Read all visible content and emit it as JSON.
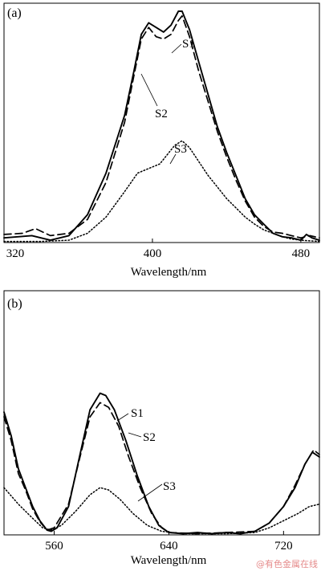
{
  "chart_data": [
    {
      "type": "line",
      "panel_label": "(a)",
      "xlabel": "Wavelength/nm",
      "ylabel": "",
      "xlim": [
        320,
        490
      ],
      "ylim": [
        0,
        1.0
      ],
      "xticks": [
        320,
        400,
        480
      ],
      "yticks_shown": false,
      "series": [
        {
          "name": "S1",
          "style": "solid",
          "points": [
            [
              320,
              0.02
            ],
            [
              335,
              0.03
            ],
            [
              345,
              0.01
            ],
            [
              355,
              0.03
            ],
            [
              365,
              0.12
            ],
            [
              375,
              0.3
            ],
            [
              385,
              0.55
            ],
            [
              390,
              0.74
            ],
            [
              394,
              0.9
            ],
            [
              398,
              0.95
            ],
            [
              402,
              0.93
            ],
            [
              406,
              0.91
            ],
            [
              410,
              0.94
            ],
            [
              414,
              1.0
            ],
            [
              416,
              1.0
            ],
            [
              420,
              0.92
            ],
            [
              425,
              0.78
            ],
            [
              430,
              0.64
            ],
            [
              435,
              0.5
            ],
            [
              440,
              0.39
            ],
            [
              445,
              0.29
            ],
            [
              450,
              0.19
            ],
            [
              455,
              0.12
            ],
            [
              460,
              0.08
            ],
            [
              465,
              0.04
            ],
            [
              470,
              0.025
            ],
            [
              475,
              0.02
            ],
            [
              480,
              0.01
            ],
            [
              483,
              0.035
            ],
            [
              486,
              0.02
            ],
            [
              490,
              0.01
            ]
          ]
        },
        {
          "name": "S2",
          "style": "dashed",
          "points": [
            [
              320,
              0.035
            ],
            [
              330,
              0.04
            ],
            [
              337,
              0.06
            ],
            [
              345,
              0.03
            ],
            [
              355,
              0.04
            ],
            [
              365,
              0.1
            ],
            [
              375,
              0.26
            ],
            [
              385,
              0.52
            ],
            [
              390,
              0.72
            ],
            [
              394,
              0.88
            ],
            [
              398,
              0.93
            ],
            [
              402,
              0.89
            ],
            [
              406,
              0.88
            ],
            [
              410,
              0.9
            ],
            [
              414,
              0.96
            ],
            [
              416,
              0.98
            ],
            [
              420,
              0.89
            ],
            [
              425,
              0.74
            ],
            [
              430,
              0.61
            ],
            [
              435,
              0.48
            ],
            [
              440,
              0.37
            ],
            [
              445,
              0.27
            ],
            [
              450,
              0.18
            ],
            [
              455,
              0.11
            ],
            [
              460,
              0.07
            ],
            [
              465,
              0.045
            ],
            [
              470,
              0.04
            ],
            [
              475,
              0.03
            ],
            [
              480,
              0.02
            ],
            [
              485,
              0.03
            ],
            [
              490,
              0.02
            ]
          ]
        },
        {
          "name": "S3",
          "style": "dotted",
          "points": [
            [
              320,
              0.005
            ],
            [
              340,
              0.005
            ],
            [
              355,
              0.01
            ],
            [
              365,
              0.04
            ],
            [
              375,
              0.11
            ],
            [
              385,
              0.22
            ],
            [
              392,
              0.3
            ],
            [
              398,
              0.32
            ],
            [
              404,
              0.34
            ],
            [
              408,
              0.38
            ],
            [
              412,
              0.42
            ],
            [
              416,
              0.44
            ],
            [
              420,
              0.41
            ],
            [
              425,
              0.35
            ],
            [
              430,
              0.29
            ],
            [
              435,
              0.24
            ],
            [
              440,
              0.19
            ],
            [
              445,
              0.15
            ],
            [
              450,
              0.11
            ],
            [
              455,
              0.08
            ],
            [
              460,
              0.055
            ],
            [
              465,
              0.04
            ],
            [
              470,
              0.025
            ],
            [
              475,
              0.015
            ],
            [
              480,
              0.01
            ],
            [
              490,
              0.005
            ]
          ]
        }
      ],
      "annotations": [
        "S1",
        "S2",
        "S3"
      ]
    },
    {
      "type": "line",
      "panel_label": "(b)",
      "xlabel": "Wavelength/nm",
      "ylabel": "",
      "xlim": [
        525,
        745
      ],
      "ylim": [
        0,
        1.0
      ],
      "xticks": [
        560,
        640,
        720
      ],
      "yticks_shown": false,
      "series": [
        {
          "name": "S1",
          "style": "solid",
          "points": [
            [
              525,
              0.52
            ],
            [
              530,
              0.42
            ],
            [
              535,
              0.28
            ],
            [
              540,
              0.2
            ],
            [
              545,
              0.12
            ],
            [
              550,
              0.06
            ],
            [
              555,
              0.02
            ],
            [
              558,
              0.015
            ],
            [
              562,
              0.03
            ],
            [
              570,
              0.12
            ],
            [
              578,
              0.34
            ],
            [
              585,
              0.53
            ],
            [
              592,
              0.6
            ],
            [
              596,
              0.59
            ],
            [
              602,
              0.53
            ],
            [
              610,
              0.4
            ],
            [
              618,
              0.25
            ],
            [
              626,
              0.12
            ],
            [
              633,
              0.04
            ],
            [
              640,
              0.01
            ],
            [
              650,
              0.005
            ],
            [
              660,
              0.01
            ],
            [
              670,
              0.005
            ],
            [
              680,
              0.01
            ],
            [
              690,
              0.005
            ],
            [
              700,
              0.015
            ],
            [
              710,
              0.05
            ],
            [
              720,
              0.12
            ],
            [
              728,
              0.2
            ],
            [
              735,
              0.3
            ],
            [
              740,
              0.35
            ],
            [
              745,
              0.33
            ]
          ]
        },
        {
          "name": "S2",
          "style": "dashed",
          "points": [
            [
              525,
              0.5
            ],
            [
              530,
              0.4
            ],
            [
              535,
              0.26
            ],
            [
              540,
              0.19
            ],
            [
              545,
              0.11
            ],
            [
              550,
              0.055
            ],
            [
              555,
              0.02
            ],
            [
              560,
              0.03
            ],
            [
              570,
              0.13
            ],
            [
              578,
              0.33
            ],
            [
              585,
              0.5
            ],
            [
              592,
              0.56
            ],
            [
              598,
              0.54
            ],
            [
              605,
              0.46
            ],
            [
              612,
              0.33
            ],
            [
              620,
              0.2
            ],
            [
              628,
              0.09
            ],
            [
              635,
              0.03
            ],
            [
              640,
              0.01
            ],
            [
              660,
              0.005
            ],
            [
              680,
              0.01
            ],
            [
              700,
              0.015
            ],
            [
              710,
              0.05
            ],
            [
              720,
              0.12
            ],
            [
              728,
              0.21
            ],
            [
              735,
              0.3
            ],
            [
              741,
              0.36
            ],
            [
              745,
              0.34
            ]
          ]
        },
        {
          "name": "S3",
          "style": "dotted",
          "points": [
            [
              525,
              0.2
            ],
            [
              535,
              0.13
            ],
            [
              545,
              0.07
            ],
            [
              552,
              0.03
            ],
            [
              558,
              0.02
            ],
            [
              565,
              0.04
            ],
            [
              575,
              0.1
            ],
            [
              585,
              0.17
            ],
            [
              592,
              0.2
            ],
            [
              598,
              0.19
            ],
            [
              606,
              0.15
            ],
            [
              615,
              0.09
            ],
            [
              625,
              0.04
            ],
            [
              635,
              0.015
            ],
            [
              650,
              0.005
            ],
            [
              680,
              0.005
            ],
            [
              700,
              0.01
            ],
            [
              710,
              0.03
            ],
            [
              720,
              0.06
            ],
            [
              730,
              0.09
            ],
            [
              738,
              0.12
            ],
            [
              745,
              0.13
            ]
          ]
        }
      ],
      "annotations": [
        "S1",
        "S2",
        "S3"
      ]
    }
  ],
  "watermark": "@有色金属在线"
}
